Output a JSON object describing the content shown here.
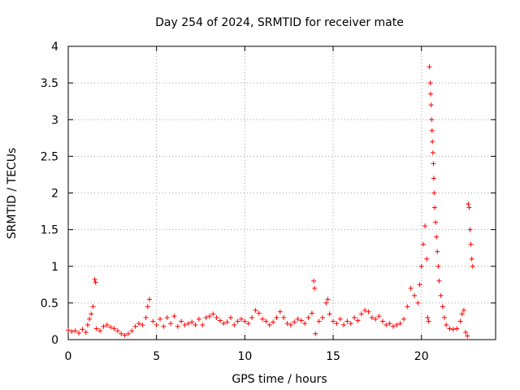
{
  "chart_data": {
    "type": "scatter",
    "title": "Day 254 of 2024, SRMTID for receiver mate",
    "xlabel": "GPS time / hours",
    "ylabel": "SRMTID / TECUs",
    "xlim": [
      0,
      24.2
    ],
    "ylim": [
      0,
      4
    ],
    "grid": true,
    "x_ticks": [
      0,
      5,
      10,
      15,
      20
    ],
    "x_tick_labels": [
      "0",
      "5",
      "10",
      "15",
      "20"
    ],
    "y_ticks": [
      0,
      0.5,
      1,
      1.5,
      2,
      2.5,
      3,
      3.5,
      4
    ],
    "y_tick_labels": [
      "0",
      "0.5",
      "1",
      "1.5",
      "2",
      "2.5",
      "3",
      "3.5",
      "4"
    ],
    "marker": "+",
    "marker_color": "#ff0000",
    "series": [
      {
        "name": "SRMTID",
        "points": [
          [
            0.0,
            0.13
          ],
          [
            0.2,
            0.11
          ],
          [
            0.4,
            0.12
          ],
          [
            0.6,
            0.09
          ],
          [
            0.8,
            0.14
          ],
          [
            1.0,
            0.1
          ],
          [
            1.1,
            0.2
          ],
          [
            1.2,
            0.28
          ],
          [
            1.3,
            0.35
          ],
          [
            1.4,
            0.45
          ],
          [
            1.5,
            0.82
          ],
          [
            1.55,
            0.78
          ],
          [
            1.6,
            0.15
          ],
          [
            1.8,
            0.12
          ],
          [
            2.0,
            0.18
          ],
          [
            2.2,
            0.2
          ],
          [
            2.4,
            0.17
          ],
          [
            2.6,
            0.15
          ],
          [
            2.8,
            0.12
          ],
          [
            3.0,
            0.08
          ],
          [
            3.2,
            0.06
          ],
          [
            3.4,
            0.08
          ],
          [
            3.6,
            0.12
          ],
          [
            3.8,
            0.18
          ],
          [
            4.0,
            0.22
          ],
          [
            4.2,
            0.2
          ],
          [
            4.4,
            0.3
          ],
          [
            4.5,
            0.45
          ],
          [
            4.6,
            0.55
          ],
          [
            4.8,
            0.25
          ],
          [
            5.0,
            0.2
          ],
          [
            5.2,
            0.28
          ],
          [
            5.4,
            0.18
          ],
          [
            5.6,
            0.3
          ],
          [
            5.8,
            0.22
          ],
          [
            6.0,
            0.32
          ],
          [
            6.2,
            0.18
          ],
          [
            6.4,
            0.25
          ],
          [
            6.6,
            0.2
          ],
          [
            6.8,
            0.22
          ],
          [
            7.0,
            0.24
          ],
          [
            7.2,
            0.2
          ],
          [
            7.4,
            0.28
          ],
          [
            7.6,
            0.2
          ],
          [
            7.8,
            0.3
          ],
          [
            8.0,
            0.32
          ],
          [
            8.2,
            0.35
          ],
          [
            8.4,
            0.3
          ],
          [
            8.6,
            0.26
          ],
          [
            8.8,
            0.22
          ],
          [
            9.0,
            0.24
          ],
          [
            9.2,
            0.3
          ],
          [
            9.4,
            0.2
          ],
          [
            9.6,
            0.25
          ],
          [
            9.8,
            0.28
          ],
          [
            10.0,
            0.25
          ],
          [
            10.2,
            0.22
          ],
          [
            10.4,
            0.3
          ],
          [
            10.6,
            0.4
          ],
          [
            10.8,
            0.36
          ],
          [
            11.0,
            0.28
          ],
          [
            11.2,
            0.25
          ],
          [
            11.4,
            0.2
          ],
          [
            11.6,
            0.24
          ],
          [
            11.8,
            0.3
          ],
          [
            12.0,
            0.38
          ],
          [
            12.2,
            0.3
          ],
          [
            12.4,
            0.22
          ],
          [
            12.6,
            0.2
          ],
          [
            12.8,
            0.24
          ],
          [
            13.0,
            0.28
          ],
          [
            13.2,
            0.26
          ],
          [
            13.4,
            0.22
          ],
          [
            13.6,
            0.3
          ],
          [
            13.8,
            0.36
          ],
          [
            13.9,
            0.8
          ],
          [
            13.95,
            0.7
          ],
          [
            14.0,
            0.08
          ],
          [
            14.2,
            0.25
          ],
          [
            14.4,
            0.3
          ],
          [
            14.6,
            0.5
          ],
          [
            14.7,
            0.55
          ],
          [
            14.8,
            0.35
          ],
          [
            15.0,
            0.25
          ],
          [
            15.2,
            0.22
          ],
          [
            15.4,
            0.28
          ],
          [
            15.6,
            0.2
          ],
          [
            15.8,
            0.25
          ],
          [
            16.0,
            0.22
          ],
          [
            16.2,
            0.3
          ],
          [
            16.4,
            0.26
          ],
          [
            16.6,
            0.35
          ],
          [
            16.8,
            0.4
          ],
          [
            17.0,
            0.38
          ],
          [
            17.2,
            0.3
          ],
          [
            17.4,
            0.28
          ],
          [
            17.6,
            0.32
          ],
          [
            17.8,
            0.25
          ],
          [
            18.0,
            0.2
          ],
          [
            18.2,
            0.22
          ],
          [
            18.4,
            0.18
          ],
          [
            18.6,
            0.2
          ],
          [
            18.8,
            0.22
          ],
          [
            19.0,
            0.28
          ],
          [
            19.2,
            0.45
          ],
          [
            19.4,
            0.7
          ],
          [
            19.6,
            0.6
          ],
          [
            19.8,
            0.5
          ],
          [
            19.9,
            0.75
          ],
          [
            20.0,
            1.0
          ],
          [
            20.1,
            1.3
          ],
          [
            20.2,
            1.55
          ],
          [
            20.3,
            1.1
          ],
          [
            20.35,
            0.3
          ],
          [
            20.4,
            0.25
          ],
          [
            20.45,
            3.72
          ],
          [
            20.5,
            3.5
          ],
          [
            20.52,
            3.35
          ],
          [
            20.55,
            3.2
          ],
          [
            20.58,
            3.0
          ],
          [
            20.6,
            2.85
          ],
          [
            20.62,
            2.7
          ],
          [
            20.65,
            2.55
          ],
          [
            20.68,
            2.4
          ],
          [
            20.7,
            2.2
          ],
          [
            20.72,
            2.0
          ],
          [
            20.75,
            1.8
          ],
          [
            20.8,
            1.6
          ],
          [
            20.85,
            1.4
          ],
          [
            20.9,
            1.2
          ],
          [
            20.95,
            1.0
          ],
          [
            21.0,
            0.8
          ],
          [
            21.1,
            0.6
          ],
          [
            21.2,
            0.45
          ],
          [
            21.3,
            0.3
          ],
          [
            21.4,
            0.2
          ],
          [
            21.6,
            0.15
          ],
          [
            21.8,
            0.14
          ],
          [
            22.0,
            0.15
          ],
          [
            22.2,
            0.25
          ],
          [
            22.3,
            0.35
          ],
          [
            22.4,
            0.4
          ],
          [
            22.5,
            0.1
          ],
          [
            22.6,
            0.05
          ],
          [
            22.65,
            1.85
          ],
          [
            22.7,
            1.8
          ],
          [
            22.75,
            1.5
          ],
          [
            22.8,
            1.3
          ],
          [
            22.85,
            1.1
          ],
          [
            22.9,
            1.0
          ]
        ]
      }
    ]
  }
}
